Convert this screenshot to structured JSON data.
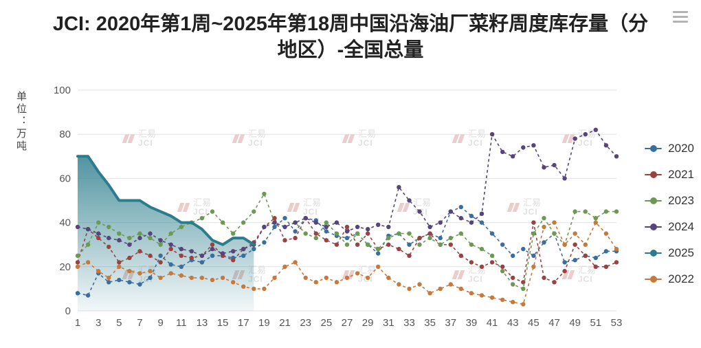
{
  "header": {
    "title": "JCI: 2020年第1周~2025年第18周中国沿海油厂菜籽周度库存量（分地区）-全国总量"
  },
  "y_axis_unit": "单位：万吨",
  "watermark": {
    "cn": "汇易",
    "en": "JCI"
  },
  "toolbox": {
    "menu_icon": "hamburger"
  },
  "chart_data": {
    "type": "line",
    "title": "JCI: 2020年第1周~2025年第18周中国沿海油厂菜籽周度库存量（分地区）-全国总量",
    "xlabel": "",
    "ylabel": "单位：万吨",
    "x_range": [
      1,
      53
    ],
    "x_ticks": [
      1,
      3,
      5,
      7,
      9,
      11,
      13,
      15,
      17,
      19,
      21,
      23,
      25,
      27,
      29,
      31,
      33,
      35,
      37,
      39,
      41,
      43,
      45,
      47,
      49,
      51,
      53
    ],
    "ylim": [
      0,
      100
    ],
    "y_ticks": [
      0,
      20,
      40,
      60,
      80,
      100
    ],
    "grid": "horizontal",
    "legend_position": "right",
    "legend_order": [
      "2020",
      "2021",
      "2023",
      "2024",
      "2025",
      "2022"
    ],
    "series": [
      {
        "name": "2020",
        "color": "#3a6e9e",
        "style": "dashed",
        "values": [
          8,
          7,
          17,
          13,
          14,
          13,
          12,
          15,
          25,
          21,
          20,
          23,
          22,
          25,
          25,
          24,
          25,
          28,
          31,
          38,
          42,
          36,
          42,
          41,
          36,
          34,
          33,
          35,
          30,
          26,
          34,
          35,
          30,
          33,
          35,
          33,
          45,
          47,
          43,
          40,
          35,
          30,
          25,
          28,
          25,
          31,
          35,
          22,
          23,
          25,
          24,
          27,
          27
        ]
      },
      {
        "name": "2021",
        "color": "#9a4141",
        "style": "dashed",
        "values": [
          22,
          37,
          33,
          29,
          22,
          24,
          27,
          25,
          22,
          28,
          25,
          24,
          25,
          30,
          25,
          23,
          28,
          31,
          38,
          42,
          32,
          33,
          42,
          35,
          32,
          30,
          38,
          30,
          35,
          28,
          30,
          28,
          25,
          33,
          35,
          30,
          30,
          25,
          22,
          20,
          22,
          20,
          15,
          13,
          40,
          15,
          13,
          18,
          30,
          25,
          20,
          20,
          22
        ]
      },
      {
        "name": "2023",
        "color": "#6d9a52",
        "style": "dashed",
        "values": [
          25,
          30,
          40,
          38,
          35,
          33,
          35,
          33,
          30,
          35,
          38,
          40,
          42,
          45,
          40,
          35,
          40,
          45,
          53,
          40,
          38,
          40,
          35,
          33,
          40,
          35,
          30,
          35,
          30,
          28,
          33,
          35,
          35,
          30,
          33,
          30,
          33,
          35,
          30,
          28,
          25,
          18,
          12,
          10,
          35,
          42,
          35,
          30,
          45,
          45,
          42,
          45,
          45
        ]
      },
      {
        "name": "2024",
        "color": "#55457a",
        "style": "dashed",
        "values": [
          38,
          37,
          35,
          33,
          32,
          30,
          33,
          35,
          32,
          30,
          28,
          27,
          25,
          28,
          26,
          27,
          28,
          30,
          38,
          40,
          38,
          40,
          42,
          40,
          38,
          40,
          36,
          38,
          37,
          39,
          38,
          56,
          50,
          45,
          38,
          40,
          45,
          42,
          40,
          44,
          80,
          72,
          70,
          74,
          75,
          65,
          66,
          60,
          78,
          80,
          82,
          75,
          70
        ]
      },
      {
        "name": "2025",
        "color": "#2b7d8c",
        "style": "solid-area",
        "values": [
          70,
          70,
          63,
          57,
          50,
          50,
          50,
          47,
          45,
          43,
          40,
          40,
          37,
          32,
          30,
          33,
          33,
          30,
          null,
          null,
          null,
          null,
          null,
          null,
          null,
          null,
          null,
          null,
          null,
          null,
          null,
          null,
          null,
          null,
          null,
          null,
          null,
          null,
          null,
          null,
          null,
          null,
          null,
          null,
          null,
          null,
          null,
          null,
          null,
          null,
          null,
          null,
          null
        ]
      },
      {
        "name": "2022",
        "color": "#c6793b",
        "style": "dashed",
        "values": [
          20,
          22,
          18,
          15,
          20,
          18,
          17,
          18,
          15,
          17,
          16,
          15,
          15,
          14,
          15,
          13,
          11,
          10,
          10,
          15,
          20,
          22,
          15,
          13,
          15,
          13,
          15,
          17,
          15,
          20,
          15,
          12,
          10,
          12,
          8,
          10,
          12,
          10,
          8,
          7,
          6,
          5,
          4,
          3,
          20,
          38,
          40,
          30,
          35,
          30,
          40,
          35,
          28
        ]
      }
    ]
  }
}
